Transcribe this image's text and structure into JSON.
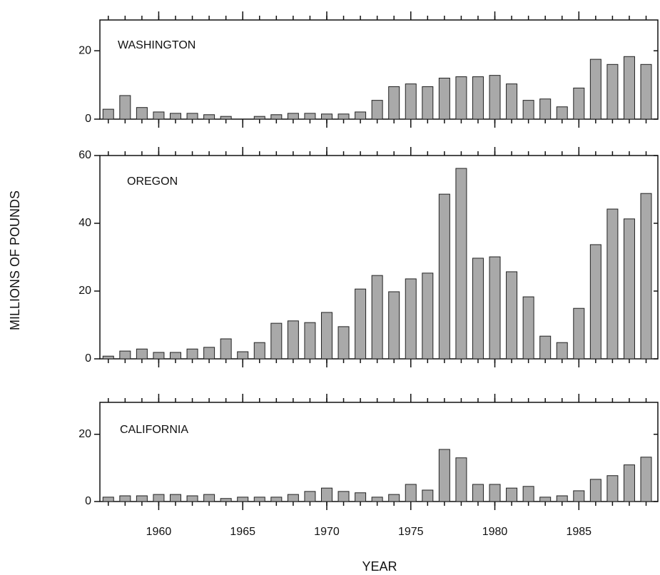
{
  "chart_data": [
    {
      "type": "bar",
      "title": "WASHINGTON",
      "x": [
        1957,
        1958,
        1959,
        1960,
        1961,
        1962,
        1963,
        1964,
        1965,
        1966,
        1967,
        1968,
        1969,
        1970,
        1971,
        1972,
        1973,
        1974,
        1975,
        1976,
        1977,
        1978,
        1979,
        1980,
        1981,
        1982,
        1983,
        1984,
        1985,
        1986,
        1987,
        1988,
        1989
      ],
      "values": [
        2.9,
        6.9,
        3.4,
        2.1,
        1.7,
        1.7,
        1.3,
        0.8,
        0,
        0.8,
        1.3,
        1.7,
        1.7,
        1.5,
        1.5,
        2.1,
        5.5,
        9.5,
        10.3,
        9.5,
        12,
        12.4,
        12.4,
        12.8,
        10.3,
        5.5,
        5.9,
        3.6,
        9.1,
        17.5,
        16,
        18.3,
        16
      ],
      "color": "#a9a9a9",
      "xlim": [
        1956.5,
        1989.7
      ],
      "xticks": [
        1960,
        1965,
        1970,
        1975,
        1980,
        1985
      ],
      "ylim": [
        0,
        29
      ],
      "yticks": [
        0,
        20
      ]
    },
    {
      "type": "bar",
      "title": "OREGON",
      "ylabel": "MILLIONS OF POUNDS",
      "x": [
        1957,
        1958,
        1959,
        1960,
        1961,
        1962,
        1963,
        1964,
        1965,
        1966,
        1967,
        1968,
        1969,
        1970,
        1971,
        1972,
        1973,
        1974,
        1975,
        1976,
        1977,
        1978,
        1979,
        1980,
        1981,
        1982,
        1983,
        1984,
        1985,
        1986,
        1987,
        1988,
        1989
      ],
      "values": [
        0.8,
        2.3,
        2.9,
        1.9,
        1.9,
        2.9,
        3.4,
        5.9,
        2.1,
        4.8,
        10.5,
        11.2,
        10.7,
        13.7,
        9.5,
        20.6,
        24.6,
        19.8,
        23.6,
        25.3,
        48.6,
        56.2,
        29.7,
        30.1,
        25.7,
        18.3,
        6.7,
        4.8,
        14.9,
        33.7,
        44.2,
        41.3,
        48.8
      ],
      "color": "#a9a9a9",
      "xlim": [
        1956.5,
        1989.7
      ],
      "xticks": [
        1960,
        1965,
        1970,
        1975,
        1980,
        1985
      ],
      "ylim": [
        0,
        60
      ],
      "yticks": [
        0,
        20,
        40,
        60
      ]
    },
    {
      "type": "bar",
      "title": "CALIFORNIA",
      "xlabel": "YEAR",
      "x": [
        1957,
        1958,
        1959,
        1960,
        1961,
        1962,
        1963,
        1964,
        1965,
        1966,
        1967,
        1968,
        1969,
        1970,
        1971,
        1972,
        1973,
        1974,
        1975,
        1976,
        1977,
        1978,
        1979,
        1980,
        1981,
        1982,
        1983,
        1984,
        1985,
        1986,
        1987,
        1988,
        1989
      ],
      "values": [
        1.3,
        1.7,
        1.7,
        2.1,
        2.1,
        1.7,
        2.1,
        0.9,
        1.3,
        1.3,
        1.3,
        2.1,
        3,
        4,
        3,
        2.6,
        1.3,
        2.1,
        5.1,
        3.4,
        15.5,
        13,
        5.1,
        5.1,
        4,
        4.5,
        1.3,
        1.7,
        3.2,
        6.6,
        7.7,
        10.9,
        13.2
      ],
      "color": "#a9a9a9",
      "xlim": [
        1956.5,
        1989.7
      ],
      "xticks": [
        1960,
        1965,
        1970,
        1975,
        1980,
        1985
      ],
      "ylim": [
        0,
        29.5
      ],
      "yticks": [
        0,
        20
      ]
    }
  ]
}
